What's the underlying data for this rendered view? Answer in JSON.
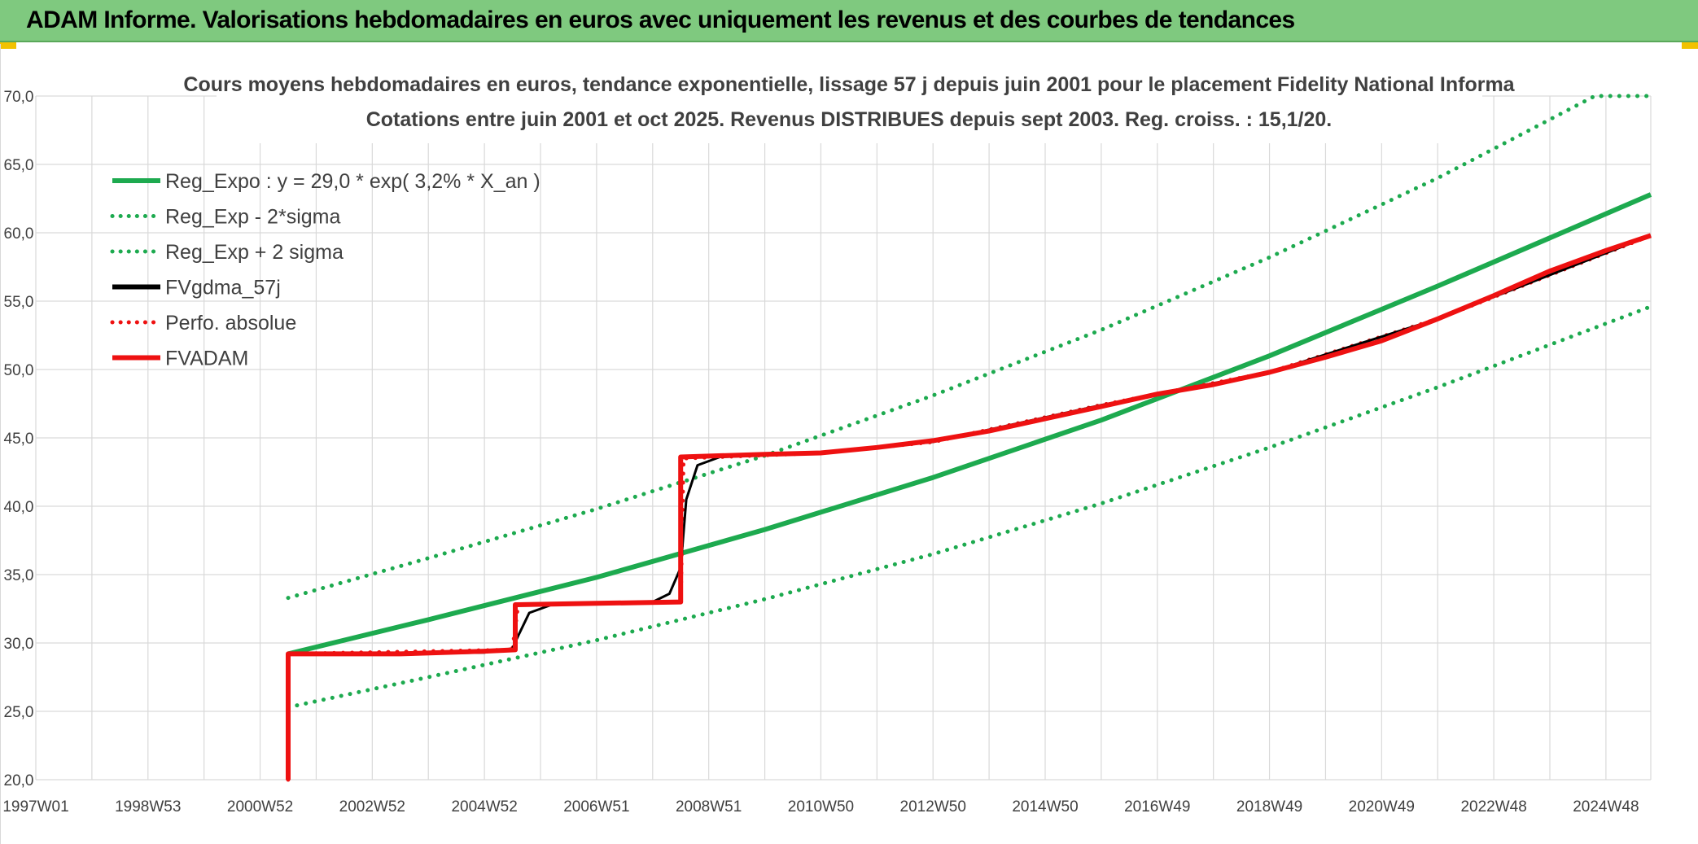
{
  "banner": {
    "title": "ADAM Informe. Valorisations hebdomadaires en euros avec uniquement les revenus et des courbes de tendances"
  },
  "colors": {
    "banner_bg": "#7fc97f",
    "green": "#1daa4f",
    "red": "#ee1111",
    "black": "#000000",
    "grid": "#d9d9d9",
    "text": "#404040",
    "corner": "#f2c200"
  },
  "chart_data": {
    "type": "line",
    "title_line1": "Cours moyens hebdomadaires en euros, tendance exponentielle, lissage 57 j depuis juin 2001 pour le placement Fidelity National Informa",
    "title_line2": "Cotations entre juin 2001 et oct 2025. Revenus DISTRIBUES depuis sept 2003. Reg. croiss. : 15,1/20.",
    "xlabel": "",
    "ylabel": "",
    "x_range": [
      1997.0,
      2025.8
    ],
    "ylim": [
      20,
      70
    ],
    "y_ticks": [
      "20,0",
      "25,0",
      "30,0",
      "35,0",
      "40,0",
      "45,0",
      "50,0",
      "55,0",
      "60,0",
      "65,0",
      "70,0"
    ],
    "x_ticks": [
      {
        "label": "1997W01",
        "year": 1997.0
      },
      {
        "label": "1998W53",
        "year": 1999.0
      },
      {
        "label": "2000W52",
        "year": 2001.0
      },
      {
        "label": "2002W52",
        "year": 2003.0
      },
      {
        "label": "2004W52",
        "year": 2005.0
      },
      {
        "label": "2006W51",
        "year": 2007.0
      },
      {
        "label": "2008W51",
        "year": 2009.0
      },
      {
        "label": "2010W50",
        "year": 2011.0
      },
      {
        "label": "2012W50",
        "year": 2013.0
      },
      {
        "label": "2014W50",
        "year": 2015.0
      },
      {
        "label": "2016W49",
        "year": 2017.0
      },
      {
        "label": "2018W49",
        "year": 2019.0
      },
      {
        "label": "2020W49",
        "year": 2021.0
      },
      {
        "label": "2022W48",
        "year": 2023.0
      },
      {
        "label": "2024W48",
        "year": 2025.0
      }
    ],
    "grid": true,
    "legend_position": "top-left",
    "series": [
      {
        "name": "Reg_Expo : y = 29,0 * exp( 3,2% *  X_an )",
        "style": "solid",
        "color": "#1daa4f",
        "x": [
          2001.5,
          2004.0,
          2007.0,
          2010.0,
          2013.0,
          2016.0,
          2019.0,
          2022.0,
          2025.8
        ],
        "y": [
          29.2,
          31.7,
          34.8,
          38.3,
          42.1,
          46.3,
          51.0,
          56.1,
          62.8
        ]
      },
      {
        "name": "Reg_Exp - 2*sigma",
        "style": "dotted",
        "color": "#1daa4f",
        "x": [
          2001.5,
          2004.0,
          2007.0,
          2010.0,
          2013.0,
          2016.0,
          2019.0,
          2022.0,
          2025.8
        ],
        "y": [
          25.3,
          27.5,
          30.2,
          33.2,
          36.5,
          40.2,
          44.3,
          48.7,
          54.6
        ]
      },
      {
        "name": "Reg_Exp + 2 sigma",
        "style": "dotted",
        "color": "#1daa4f",
        "x": [
          2001.5,
          2004.0,
          2007.0,
          2010.0,
          2013.0,
          2016.0,
          2019.0,
          2022.0,
          2024.8,
          2025.8
        ],
        "y": [
          33.3,
          36.2,
          39.8,
          43.7,
          48.1,
          52.9,
          58.2,
          64.0,
          70.0,
          70.0
        ]
      },
      {
        "name": "FVgdma_57j",
        "style": "solid",
        "color": "#000000",
        "x": [
          2001.5,
          2001.7,
          2003.5,
          2005.0,
          2005.5,
          2005.6,
          2005.8,
          2006.2,
          2008.0,
          2008.3,
          2008.5,
          2008.6,
          2008.8,
          2009.2,
          2011.0,
          2013.0,
          2016.0,
          2019.0,
          2022.0,
          2025.8
        ],
        "y": [
          29.2,
          29.2,
          29.2,
          29.3,
          29.6,
          30.5,
          32.2,
          32.8,
          33.0,
          33.6,
          35.5,
          40.5,
          43.0,
          43.6,
          43.9,
          44.7,
          47.4,
          49.8,
          53.7,
          59.8
        ]
      },
      {
        "name": "Perfo. absolue",
        "style": "dotted",
        "color": "#ee1111",
        "x": [
          2001.5,
          2001.5,
          2005.5,
          2005.6,
          2008.5,
          2008.55,
          2011.0,
          2013.0,
          2016.0,
          2019.0,
          2022.0,
          2025.8
        ],
        "y": [
          20.0,
          29.2,
          29.5,
          32.8,
          33.0,
          43.5,
          43.9,
          44.7,
          47.4,
          49.8,
          53.7,
          59.8
        ]
      },
      {
        "name": "FVADAM",
        "style": "solid",
        "color": "#ee1111",
        "x": [
          2001.5,
          2001.5,
          2003.5,
          2005.0,
          2005.55,
          2005.55,
          2007.0,
          2008.5,
          2008.5,
          2010.0,
          2011.0,
          2012.0,
          2013.0,
          2014.0,
          2015.0,
          2016.0,
          2017.0,
          2018.0,
          2019.0,
          2020.0,
          2021.0,
          2022.0,
          2023.0,
          2024.0,
          2025.0,
          2025.8
        ],
        "y": [
          20.0,
          29.2,
          29.2,
          29.4,
          29.5,
          32.8,
          32.9,
          33.0,
          43.6,
          43.8,
          43.9,
          44.3,
          44.8,
          45.5,
          46.4,
          47.3,
          48.2,
          48.9,
          49.8,
          50.9,
          52.1,
          53.7,
          55.4,
          57.2,
          58.7,
          59.8
        ]
      }
    ]
  }
}
